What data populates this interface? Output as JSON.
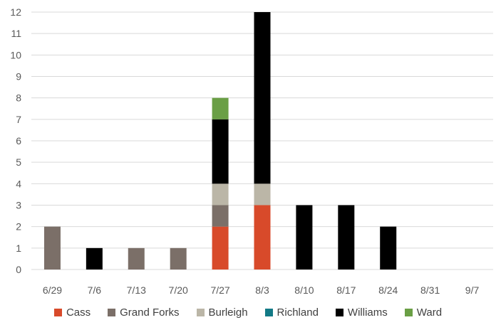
{
  "chart_data": {
    "type": "bar",
    "stacked": true,
    "categories": [
      "6/29",
      "7/6",
      "7/13",
      "7/20",
      "7/27",
      "8/3",
      "8/10",
      "8/17",
      "8/24",
      "8/31",
      "9/7"
    ],
    "series": [
      {
        "name": "Cass",
        "color": "#D84A2A",
        "values": [
          0,
          0,
          0,
          0,
          2,
          3,
          0,
          0,
          0,
          0,
          0
        ]
      },
      {
        "name": "Grand Forks",
        "color": "#7B6F68",
        "values": [
          2,
          0,
          1,
          1,
          1,
          0,
          0,
          0,
          0,
          0,
          0
        ]
      },
      {
        "name": "Burleigh",
        "color": "#BBB6A7",
        "values": [
          0,
          0,
          0,
          0,
          1,
          1,
          0,
          0,
          0,
          0,
          0
        ]
      },
      {
        "name": "Richland",
        "color": "#137A86",
        "values": [
          0,
          0,
          0,
          0,
          0,
          0,
          0,
          0,
          0,
          0,
          0
        ]
      },
      {
        "name": "Williams",
        "color": "#000000",
        "values": [
          0,
          1,
          0,
          0,
          3,
          8,
          3,
          3,
          2,
          0,
          0
        ]
      },
      {
        "name": "Ward",
        "color": "#6A9F45",
        "values": [
          0,
          0,
          0,
          0,
          1,
          0,
          0,
          0,
          0,
          0,
          0
        ]
      }
    ],
    "ylim": [
      0,
      12
    ],
    "yticks": [
      "0",
      "1",
      "2",
      "3",
      "4",
      "5",
      "6",
      "7",
      "8",
      "9",
      "10",
      "11",
      "12"
    ],
    "grid": true,
    "legend_position": "bottom"
  }
}
